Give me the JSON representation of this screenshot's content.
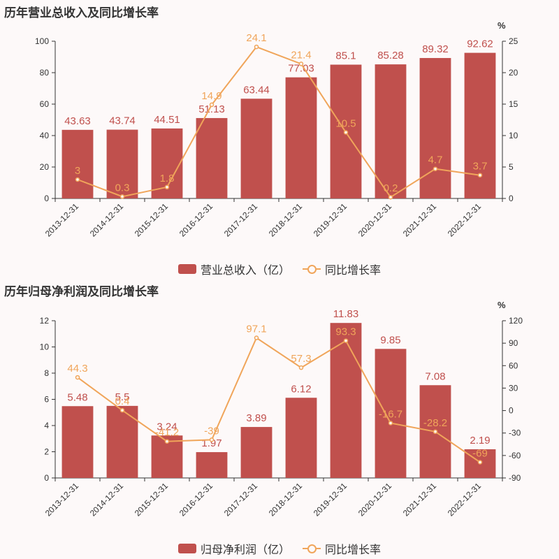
{
  "colors": {
    "bar": "#c0504d",
    "line": "#f0a55a",
    "bar_label": "#c0504d",
    "line_label": "#f0a55a",
    "axis": "#333333"
  },
  "chart_data": [
    {
      "type": "bar+line",
      "title": "历年营业总收入及同比增长率",
      "categories": [
        "2013-12-31",
        "2014-12-31",
        "2015-12-31",
        "2016-12-31",
        "2017-12-31",
        "2018-12-31",
        "2019-12-31",
        "2020-12-31",
        "2021-12-31",
        "2022-12-31"
      ],
      "series": [
        {
          "name": "营业总收入（亿）",
          "type": "bar",
          "axis": "left",
          "values": [
            43.63,
            43.74,
            44.51,
            51.13,
            63.44,
            77.03,
            85.1,
            85.28,
            89.32,
            92.62
          ],
          "labels": [
            "43.63",
            "43.74",
            "44.51",
            "51.13",
            "63.44",
            "77.03",
            "85.1",
            "85.28",
            "89.32",
            "92.62"
          ]
        },
        {
          "name": "同比增长率",
          "type": "line",
          "axis": "right",
          "values": [
            3,
            0.3,
            1.8,
            14.9,
            24.1,
            21.4,
            10.5,
            0.2,
            4.7,
            3.7
          ],
          "labels": [
            "3",
            "0.3",
            "1.8",
            "14.9",
            "24.1",
            "21.4",
            "10.5",
            "0.2",
            "4.7",
            "3.7"
          ]
        }
      ],
      "y_left": {
        "min": 0,
        "max": 100,
        "ticks": [
          "0",
          "20",
          "40",
          "60",
          "80",
          "100"
        ]
      },
      "y_right": {
        "min": 0,
        "max": 25,
        "ticks": [
          "0",
          "5",
          "10",
          "15",
          "20",
          "25"
        ],
        "unit": "%"
      },
      "legend": {
        "position": "bottom",
        "items": [
          "营业总收入（亿）",
          "同比增长率"
        ]
      }
    },
    {
      "type": "bar+line",
      "title": "历年归母净利润及同比增长率",
      "categories": [
        "2013-12-31",
        "2014-12-31",
        "2015-12-31",
        "2016-12-31",
        "2017-12-31",
        "2018-12-31",
        "2019-12-31",
        "2020-12-31",
        "2021-12-31",
        "2022-12-31"
      ],
      "series": [
        {
          "name": "归母净利润（亿）",
          "type": "bar",
          "axis": "left",
          "values": [
            5.48,
            5.5,
            3.24,
            1.97,
            3.89,
            6.12,
            11.83,
            9.85,
            7.08,
            2.19
          ],
          "labels": [
            "5.48",
            "5.5",
            "3.24",
            "1.97",
            "3.89",
            "6.12",
            "11.83",
            "9.85",
            "7.08",
            "2.19"
          ]
        },
        {
          "name": "同比增长率",
          "type": "line",
          "axis": "right",
          "values": [
            44.3,
            0.4,
            -41.2,
            -39,
            97.1,
            57.3,
            93.3,
            -16.7,
            -28.2,
            -69
          ],
          "labels": [
            "44.3",
            "0.4",
            "-41.2",
            "-39",
            "97.1",
            "57.3",
            "93.3",
            "-16.7",
            "-28.2",
            "-69"
          ]
        }
      ],
      "y_left": {
        "min": 0,
        "max": 12,
        "ticks": [
          "0",
          "2",
          "4",
          "6",
          "8",
          "10",
          "12"
        ]
      },
      "y_right": {
        "min": -90,
        "max": 120,
        "ticks": [
          "-90",
          "-60",
          "-30",
          "0",
          "30",
          "60",
          "90",
          "120"
        ],
        "unit": "%"
      },
      "legend": {
        "position": "bottom",
        "items": [
          "归母净利润（亿）",
          "同比增长率"
        ]
      }
    }
  ]
}
